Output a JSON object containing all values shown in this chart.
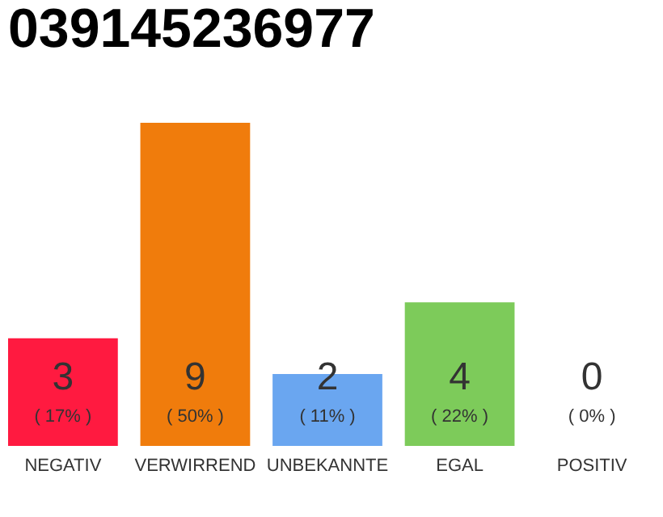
{
  "chart_data": {
    "type": "bar",
    "title": "039145236977",
    "categories": [
      "NEGATIV",
      "VERWIRREND",
      "UNBEKANNTE",
      "EGAL",
      "POSITIV"
    ],
    "values": [
      3,
      9,
      2,
      4,
      0
    ],
    "colors": [
      "#ff1a40",
      "#f07c0c",
      "#6aa6f0",
      "#7dcb5a",
      "#cccccc"
    ],
    "tick_labels": "x",
    "data_labels": true,
    "annotations": [
      "( 17% )",
      "( 50% )",
      "( 11% )",
      "( 22% )",
      "( 0% )"
    ]
  }
}
